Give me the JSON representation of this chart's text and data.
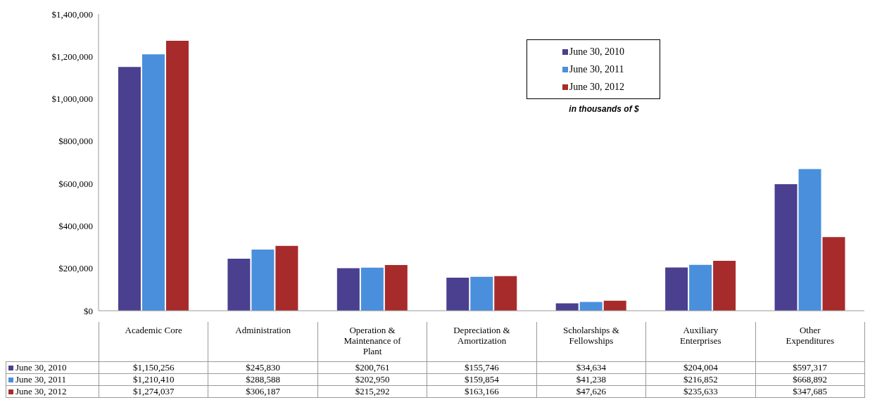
{
  "chart_data": {
    "type": "bar",
    "categories": [
      "Academic Core",
      "Administration",
      "Operation & Maintenance of Plant",
      "Depreciation & Amortization",
      "Scholarships & Fellowships",
      "Auxiliary Enterprises",
      "Other Expenditures"
    ],
    "series": [
      {
        "name": "June 30, 2010",
        "color": "#4b3f8f",
        "values": [
          1150256,
          245830,
          200761,
          155746,
          34634,
          204004,
          597317
        ],
        "value_labels": [
          "$1,150,256",
          "$245,830",
          "$200,761",
          "$155,746",
          "$34,634",
          "$204,004",
          "$597,317"
        ]
      },
      {
        "name": "June 30, 2011",
        "color": "#4a8fdc",
        "values": [
          1210410,
          288588,
          202950,
          159854,
          41238,
          216852,
          668892
        ],
        "value_labels": [
          "$1,210,410",
          "$288,588",
          "$202,950",
          "$159,854",
          "$41,238",
          "$216,852",
          "$668,892"
        ]
      },
      {
        "name": "June 30, 2012",
        "color": "#a82b2b",
        "values": [
          1274037,
          306187,
          215292,
          163166,
          47626,
          235633,
          347685
        ],
        "value_labels": [
          "$1,274,037",
          "$306,187",
          "$215,292",
          "$163,166",
          "$47,626",
          "$235,633",
          "$347,685"
        ]
      }
    ],
    "ylim": [
      0,
      1400000
    ],
    "yticks": [
      {
        "value": 0,
        "label": "$0"
      },
      {
        "value": 200000,
        "label": "$200,000"
      },
      {
        "value": 400000,
        "label": "$400,000"
      },
      {
        "value": 600000,
        "label": "$600,000"
      },
      {
        "value": 800000,
        "label": "$800,000"
      },
      {
        "value": 1000000,
        "label": "$1,000,000"
      },
      {
        "value": 1200000,
        "label": "$1,200,000"
      },
      {
        "value": 1400000,
        "label": "$1,400,000"
      }
    ],
    "grid": false,
    "legend": "top right",
    "annotations": [
      "in thousands of $"
    ]
  }
}
